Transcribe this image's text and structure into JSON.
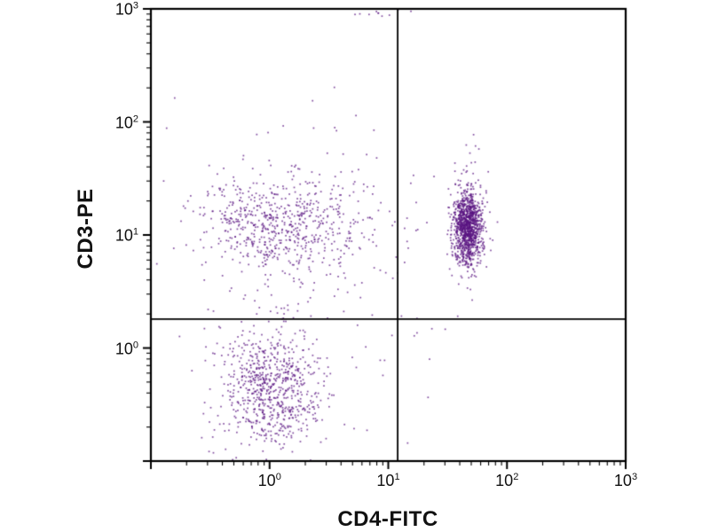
{
  "chart_data": {
    "type": "scatter",
    "title": "",
    "xlabel": "CD4-FITC",
    "ylabel": "CD3-PE",
    "x_scale": "log",
    "y_scale": "log",
    "x_log_range": [
      -1,
      3
    ],
    "y_log_range": [
      -1,
      3
    ],
    "tick_base": "10",
    "x_tick_exponents": [
      0,
      1,
      2,
      3
    ],
    "y_tick_exponents": [
      0,
      1,
      2,
      3
    ],
    "grid": false,
    "legend": false,
    "quadrant_gate": {
      "x_value": 12,
      "y_value": 1.8
    },
    "point_color": "#5a1482",
    "point_alpha": 0.75,
    "point_size": 1.7,
    "axis_color": "#000000",
    "seed": 1337,
    "clusters": [
      {
        "name": "cd3pos-cd4neg-upper-left",
        "n": 620,
        "cx": 0.08,
        "cy": 1.07,
        "sx": 0.34,
        "sy": 0.21
      },
      {
        "name": "cd3pos-cd4pos-upper-right",
        "n": 1150,
        "cx": 1.67,
        "cy": 1.06,
        "sx": 0.065,
        "sy": 0.16
      },
      {
        "name": "upper-right-high-tail",
        "n": 30,
        "cx": 1.665,
        "cy": 1.5,
        "sx": 0.07,
        "sy": 0.3
      },
      {
        "name": "cd3neg-lower-left",
        "n": 720,
        "cx": 0.02,
        "cy": -0.34,
        "sx": 0.21,
        "sy": 0.25
      },
      {
        "name": "bridge-mid",
        "n": 55,
        "cx": 0.8,
        "cy": 1.0,
        "sx": 0.4,
        "sy": 0.3
      },
      {
        "name": "background-left",
        "n": 130,
        "cx": 0.1,
        "cy": 0.4,
        "sx": 0.55,
        "sy": 0.85
      },
      {
        "name": "upper-left-high-strays",
        "n": 10,
        "cx": 0.45,
        "cy": 1.8,
        "sx": 0.4,
        "sy": 0.25
      },
      {
        "name": "lower-right-strays",
        "n": 9,
        "cx": 1.3,
        "cy": -0.05,
        "sx": 0.15,
        "sy": 0.5
      },
      {
        "name": "top-edge-pileup",
        "n": 13,
        "cx": 0.9,
        "cy": 2.97,
        "sx": 0.16,
        "sy": 0.02
      }
    ]
  }
}
